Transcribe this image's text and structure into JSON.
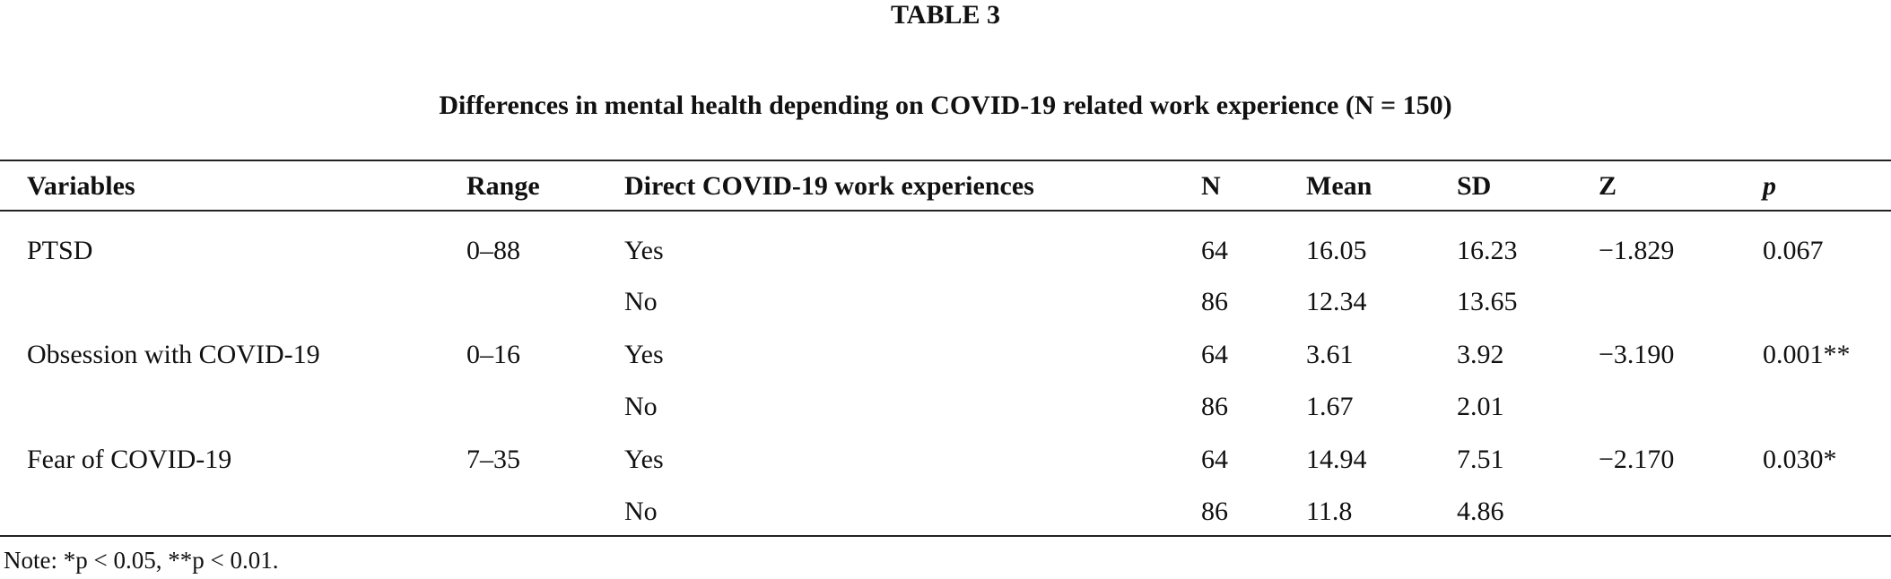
{
  "table": {
    "label": "TABLE 3",
    "caption": "Differences in mental health depending on COVID-19 related work experience (N = 150)",
    "headers": [
      "Variables",
      "Range",
      "Direct COVID-19 work experiences",
      "N",
      "Mean",
      "SD",
      "Z",
      "p"
    ],
    "groups": [
      {
        "variable": "PTSD",
        "range": "0–88",
        "z": "−1.829",
        "p": "0.067",
        "rows": [
          {
            "experience": "Yes",
            "n": "64",
            "mean": "16.05",
            "sd": "16.23"
          },
          {
            "experience": "No",
            "n": "86",
            "mean": "12.34",
            "sd": "13.65"
          }
        ]
      },
      {
        "variable": "Obsession with COVID-19",
        "range": "0–16",
        "z": "−3.190",
        "p": "0.001**",
        "rows": [
          {
            "experience": "Yes",
            "n": "64",
            "mean": "3.61",
            "sd": "3.92"
          },
          {
            "experience": "No",
            "n": "86",
            "mean": "1.67",
            "sd": "2.01"
          }
        ]
      },
      {
        "variable": "Fear of COVID-19",
        "range": "7–35",
        "z": "−2.170",
        "p": "0.030*",
        "rows": [
          {
            "experience": "Yes",
            "n": "64",
            "mean": "14.94",
            "sd": "7.51"
          },
          {
            "experience": "No",
            "n": "86",
            "mean": "11.8",
            "sd": "4.86"
          }
        ]
      }
    ],
    "note": "Note: *p < 0.05, **p < 0.01."
  }
}
